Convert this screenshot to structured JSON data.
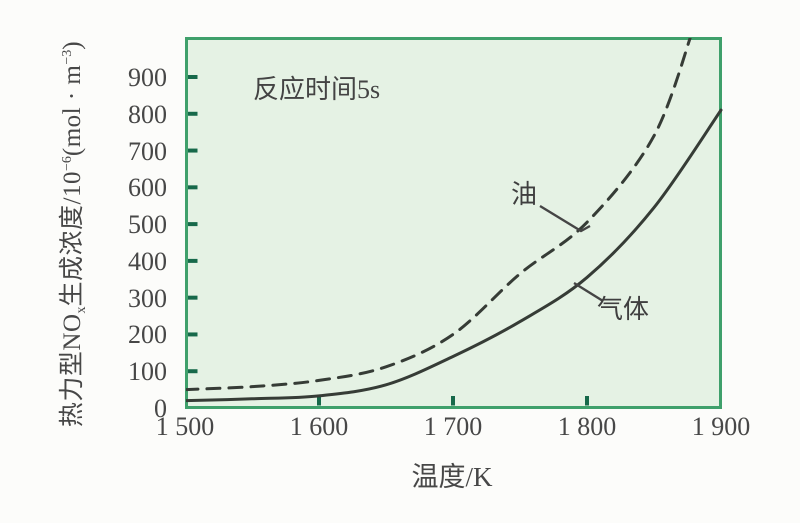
{
  "figure": {
    "annotation": "反应时间5s",
    "x_axis_title": "温度/K",
    "y_axis_title_parts": {
      "p1": "热力型NO",
      "sub1": "x",
      "p2": "生成浓度/10",
      "sup1": "−6",
      "p3": "(mol · m",
      "sup2": "−3",
      "p4": ")"
    }
  },
  "chart_data": {
    "type": "line",
    "annotation": "反应时间5s",
    "xlabel": "温度/K",
    "ylabel": "热力型NOx生成浓度/10^−6 (mol·m^−3)",
    "xlim": [
      1500,
      1900
    ],
    "ylim": [
      0,
      1000
    ],
    "grid": false,
    "legend_position": "inline-curve-labels",
    "x_tick_values": [
      1500,
      1600,
      1700,
      1800,
      1900
    ],
    "x_tick_labels": [
      "1 500",
      "1 600",
      "1 700",
      "1 800",
      "1 900"
    ],
    "y_tick_values": [
      0,
      100,
      200,
      300,
      400,
      500,
      600,
      700,
      800,
      900
    ],
    "y_tick_labels": [
      "0",
      "100",
      "200",
      "300",
      "400",
      "500",
      "600",
      "700",
      "800",
      "900"
    ],
    "plot_bg_color": "#e5f2e4",
    "border_color": "#3fa06b",
    "tick_color": "#17694a",
    "curve_color": "#363c36",
    "series": [
      {
        "name": "油",
        "fuel": "oil",
        "line_style": "dashed",
        "points": [
          [
            1500,
            50
          ],
          [
            1550,
            58
          ],
          [
            1600,
            75
          ],
          [
            1650,
            112
          ],
          [
            1700,
            200
          ],
          [
            1750,
            365
          ],
          [
            1800,
            505
          ],
          [
            1850,
            740
          ],
          [
            1880,
            1040
          ]
        ]
      },
      {
        "name": "气体",
        "fuel": "gas",
        "line_style": "solid",
        "points": [
          [
            1500,
            20
          ],
          [
            1550,
            25
          ],
          [
            1600,
            33
          ],
          [
            1650,
            63
          ],
          [
            1700,
            140
          ],
          [
            1750,
            235
          ],
          [
            1800,
            355
          ],
          [
            1850,
            545
          ],
          [
            1900,
            810
          ]
        ]
      }
    ]
  }
}
